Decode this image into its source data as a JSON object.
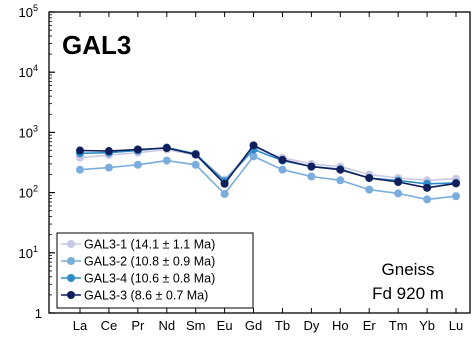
{
  "chart_data": {
    "type": "line",
    "title": "GAL3",
    "xlabel": "",
    "ylabel": "",
    "yscale": "log",
    "ylim": [
      1,
      100000
    ],
    "y_ticks": [
      {
        "base": "10",
        "exp": "5"
      },
      {
        "base": "10",
        "exp": "4"
      },
      {
        "base": "10",
        "exp": "3"
      },
      {
        "base": "10",
        "exp": "2"
      },
      {
        "base": "10",
        "exp": "1"
      },
      {
        "base": "1",
        "exp": ""
      }
    ],
    "categories": [
      "La",
      "Ce",
      "Pr",
      "Nd",
      "Sm",
      "Eu",
      "Gd",
      "Tb",
      "Dy",
      "Ho",
      "Er",
      "Tm",
      "Yb",
      "Lu"
    ],
    "grid": false,
    "legend_position": "bottom-left",
    "annotations": [
      "Gneiss",
      "Fd 920 m"
    ],
    "series": [
      {
        "name": "GAL3-1 (14.1 ± 1.1 Ma)",
        "color": "#c9c9e6",
        "values": [
          380,
          420,
          460,
          520,
          420,
          165,
          560,
          380,
          300,
          270,
          200,
          175,
          160,
          170
        ]
      },
      {
        "name": "GAL3-2 (10.8 ± 0.9 Ma)",
        "color": "#7aaddc",
        "values": [
          240,
          260,
          290,
          340,
          290,
          95,
          400,
          240,
          185,
          160,
          112,
          97,
          77,
          87
        ]
      },
      {
        "name": "GAL3-4 (10.6 ± 0.8 Ma)",
        "color": "#2f8cc8",
        "values": [
          450,
          460,
          500,
          560,
          440,
          155,
          520,
          340,
          270,
          245,
          175,
          158,
          140,
          145
        ]
      },
      {
        "name": "GAL3-3 (8.6 ± 0.7 Ma)",
        "color": "#0f1f5c",
        "values": [
          500,
          490,
          520,
          550,
          430,
          140,
          610,
          350,
          270,
          240,
          175,
          150,
          120,
          142
        ]
      }
    ]
  }
}
